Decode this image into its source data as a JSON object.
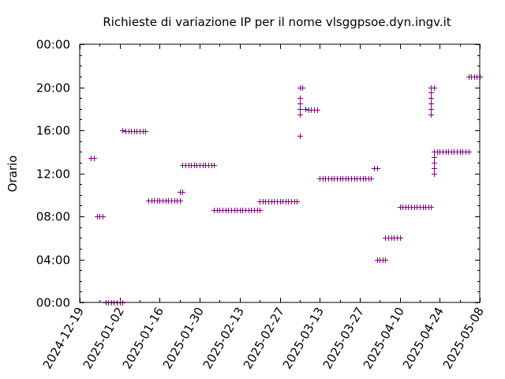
{
  "chart_data": {
    "type": "scatter",
    "title": "Richieste di variazione IP per il nome vlsggpsoe.dyn.ingv.it",
    "ylabel": "Orario",
    "xlabel": "",
    "x_tick_labels": [
      "2024-12-19",
      "2025-01-02",
      "2025-01-16",
      "2025-01-30",
      "2025-02-13",
      "2025-02-27",
      "2025-03-13",
      "2025-03-27",
      "2025-04-10",
      "2025-04-24",
      "2025-05-08"
    ],
    "y_tick_labels": [
      "00:00",
      "04:00",
      "08:00",
      "12:00",
      "16:00",
      "20:00",
      "00:00"
    ],
    "xlim": [
      "2024-12-19",
      "2025-05-08"
    ],
    "ylim_hours": [
      0,
      24
    ],
    "grid": false,
    "marker": "plus",
    "color": "#800080",
    "series": [
      {
        "points": [
          [
            "2024-12-23",
            13.4
          ],
          [
            "2024-12-24",
            13.4
          ],
          [
            "2024-12-25",
            8.0
          ],
          [
            "2024-12-26",
            8.0
          ],
          [
            "2024-12-27",
            8.0
          ],
          [
            "2024-12-28",
            0.0
          ],
          [
            "2024-12-29",
            0.0
          ],
          [
            "2024-12-30",
            0.0
          ],
          [
            "2024-12-31",
            0.0
          ],
          [
            "2025-01-01",
            0.0
          ],
          [
            "2025-01-02",
            0.0
          ],
          [
            "2025-01-03",
            0.0
          ],
          [
            "2025-01-03",
            16.0
          ],
          [
            "2025-01-04",
            15.9
          ],
          [
            "2025-01-05",
            15.9
          ],
          [
            "2025-01-06",
            15.9
          ],
          [
            "2025-01-07",
            15.9
          ],
          [
            "2025-01-08",
            15.9
          ],
          [
            "2025-01-09",
            15.9
          ],
          [
            "2025-01-10",
            15.9
          ],
          [
            "2025-01-11",
            15.9
          ],
          [
            "2025-01-12",
            9.5
          ],
          [
            "2025-01-13",
            9.5
          ],
          [
            "2025-01-14",
            9.5
          ],
          [
            "2025-01-15",
            9.5
          ],
          [
            "2025-01-16",
            9.5
          ],
          [
            "2025-01-17",
            9.5
          ],
          [
            "2025-01-18",
            9.5
          ],
          [
            "2025-01-19",
            9.5
          ],
          [
            "2025-01-20",
            9.5
          ],
          [
            "2025-01-21",
            9.5
          ],
          [
            "2025-01-22",
            9.5
          ],
          [
            "2025-01-23",
            9.5
          ],
          [
            "2025-01-23",
            10.3
          ],
          [
            "2025-01-24",
            10.3
          ],
          [
            "2025-01-24",
            12.8
          ],
          [
            "2025-01-25",
            12.8
          ],
          [
            "2025-01-26",
            12.8
          ],
          [
            "2025-01-27",
            12.8
          ],
          [
            "2025-01-28",
            12.8
          ],
          [
            "2025-01-29",
            12.8
          ],
          [
            "2025-01-30",
            12.8
          ],
          [
            "2025-01-31",
            12.8
          ],
          [
            "2025-02-01",
            12.8
          ],
          [
            "2025-02-02",
            12.8
          ],
          [
            "2025-02-03",
            12.8
          ],
          [
            "2025-02-04",
            12.8
          ],
          [
            "2025-02-04",
            8.6
          ],
          [
            "2025-02-05",
            8.6
          ],
          [
            "2025-02-06",
            8.6
          ],
          [
            "2025-02-07",
            8.6
          ],
          [
            "2025-02-08",
            8.6
          ],
          [
            "2025-02-09",
            8.6
          ],
          [
            "2025-02-10",
            8.6
          ],
          [
            "2025-02-11",
            8.6
          ],
          [
            "2025-02-12",
            8.6
          ],
          [
            "2025-02-13",
            8.6
          ],
          [
            "2025-02-14",
            8.6
          ],
          [
            "2025-02-15",
            8.6
          ],
          [
            "2025-02-16",
            8.6
          ],
          [
            "2025-02-17",
            8.6
          ],
          [
            "2025-02-18",
            8.6
          ],
          [
            "2025-02-19",
            8.6
          ],
          [
            "2025-02-20",
            8.6
          ],
          [
            "2025-02-20",
            9.4
          ],
          [
            "2025-02-21",
            9.4
          ],
          [
            "2025-02-22",
            9.4
          ],
          [
            "2025-02-23",
            9.4
          ],
          [
            "2025-02-24",
            9.4
          ],
          [
            "2025-02-25",
            9.4
          ],
          [
            "2025-02-26",
            9.4
          ],
          [
            "2025-02-27",
            9.4
          ],
          [
            "2025-02-28",
            9.4
          ],
          [
            "2025-03-01",
            9.4
          ],
          [
            "2025-03-02",
            9.4
          ],
          [
            "2025-03-03",
            9.4
          ],
          [
            "2025-03-04",
            9.4
          ],
          [
            "2025-03-05",
            9.4
          ],
          [
            "2025-03-06",
            15.5
          ],
          [
            "2025-03-06",
            17.5
          ],
          [
            "2025-03-06",
            18.0
          ],
          [
            "2025-03-06",
            18.5
          ],
          [
            "2025-03-06",
            19.0
          ],
          [
            "2025-03-06",
            20.0
          ],
          [
            "2025-03-07",
            20.0
          ],
          [
            "2025-03-08",
            18.0
          ],
          [
            "2025-03-09",
            17.9
          ],
          [
            "2025-03-10",
            17.9
          ],
          [
            "2025-03-11",
            17.9
          ],
          [
            "2025-03-12",
            17.9
          ],
          [
            "2025-03-13",
            11.5
          ],
          [
            "2025-03-14",
            11.5
          ],
          [
            "2025-03-15",
            11.5
          ],
          [
            "2025-03-16",
            11.5
          ],
          [
            "2025-03-17",
            11.5
          ],
          [
            "2025-03-18",
            11.5
          ],
          [
            "2025-03-19",
            11.5
          ],
          [
            "2025-03-20",
            11.5
          ],
          [
            "2025-03-21",
            11.5
          ],
          [
            "2025-03-22",
            11.5
          ],
          [
            "2025-03-23",
            11.5
          ],
          [
            "2025-03-24",
            11.5
          ],
          [
            "2025-03-25",
            11.5
          ],
          [
            "2025-03-26",
            11.5
          ],
          [
            "2025-03-27",
            11.5
          ],
          [
            "2025-03-28",
            11.5
          ],
          [
            "2025-03-29",
            11.5
          ],
          [
            "2025-03-30",
            11.5
          ],
          [
            "2025-03-31",
            11.5
          ],
          [
            "2025-04-01",
            12.5
          ],
          [
            "2025-04-02",
            12.5
          ],
          [
            "2025-04-02",
            4.0
          ],
          [
            "2025-04-03",
            4.0
          ],
          [
            "2025-04-04",
            4.0
          ],
          [
            "2025-04-05",
            4.0
          ],
          [
            "2025-04-05",
            6.0
          ],
          [
            "2025-04-06",
            6.0
          ],
          [
            "2025-04-07",
            6.0
          ],
          [
            "2025-04-08",
            6.0
          ],
          [
            "2025-04-09",
            6.0
          ],
          [
            "2025-04-10",
            6.0
          ],
          [
            "2025-04-10",
            8.9
          ],
          [
            "2025-04-11",
            8.9
          ],
          [
            "2025-04-12",
            8.9
          ],
          [
            "2025-04-13",
            8.9
          ],
          [
            "2025-04-14",
            8.9
          ],
          [
            "2025-04-15",
            8.9
          ],
          [
            "2025-04-16",
            8.9
          ],
          [
            "2025-04-17",
            8.9
          ],
          [
            "2025-04-18",
            8.9
          ],
          [
            "2025-04-19",
            8.9
          ],
          [
            "2025-04-20",
            8.9
          ],
          [
            "2025-04-21",
            8.9
          ],
          [
            "2025-04-21",
            17.5
          ],
          [
            "2025-04-21",
            18.0
          ],
          [
            "2025-04-21",
            18.5
          ],
          [
            "2025-04-21",
            19.0
          ],
          [
            "2025-04-21",
            19.5
          ],
          [
            "2025-04-21",
            20.0
          ],
          [
            "2025-04-22",
            20.0
          ],
          [
            "2025-04-22",
            12.0
          ],
          [
            "2025-04-22",
            12.5
          ],
          [
            "2025-04-22",
            13.0
          ],
          [
            "2025-04-22",
            13.5
          ],
          [
            "2025-04-22",
            14.0
          ],
          [
            "2025-04-23",
            14.0
          ],
          [
            "2025-04-24",
            14.0
          ],
          [
            "2025-04-25",
            14.0
          ],
          [
            "2025-04-26",
            14.0
          ],
          [
            "2025-04-27",
            14.0
          ],
          [
            "2025-04-28",
            14.0
          ],
          [
            "2025-04-29",
            14.0
          ],
          [
            "2025-04-30",
            14.0
          ],
          [
            "2025-05-01",
            14.0
          ],
          [
            "2025-05-02",
            14.0
          ],
          [
            "2025-05-03",
            14.0
          ],
          [
            "2025-05-04",
            14.0
          ],
          [
            "2025-05-04",
            21.0
          ],
          [
            "2025-05-05",
            21.0
          ],
          [
            "2025-05-06",
            21.0
          ],
          [
            "2025-05-07",
            21.0
          ],
          [
            "2025-05-08",
            21.0
          ]
        ]
      }
    ]
  }
}
